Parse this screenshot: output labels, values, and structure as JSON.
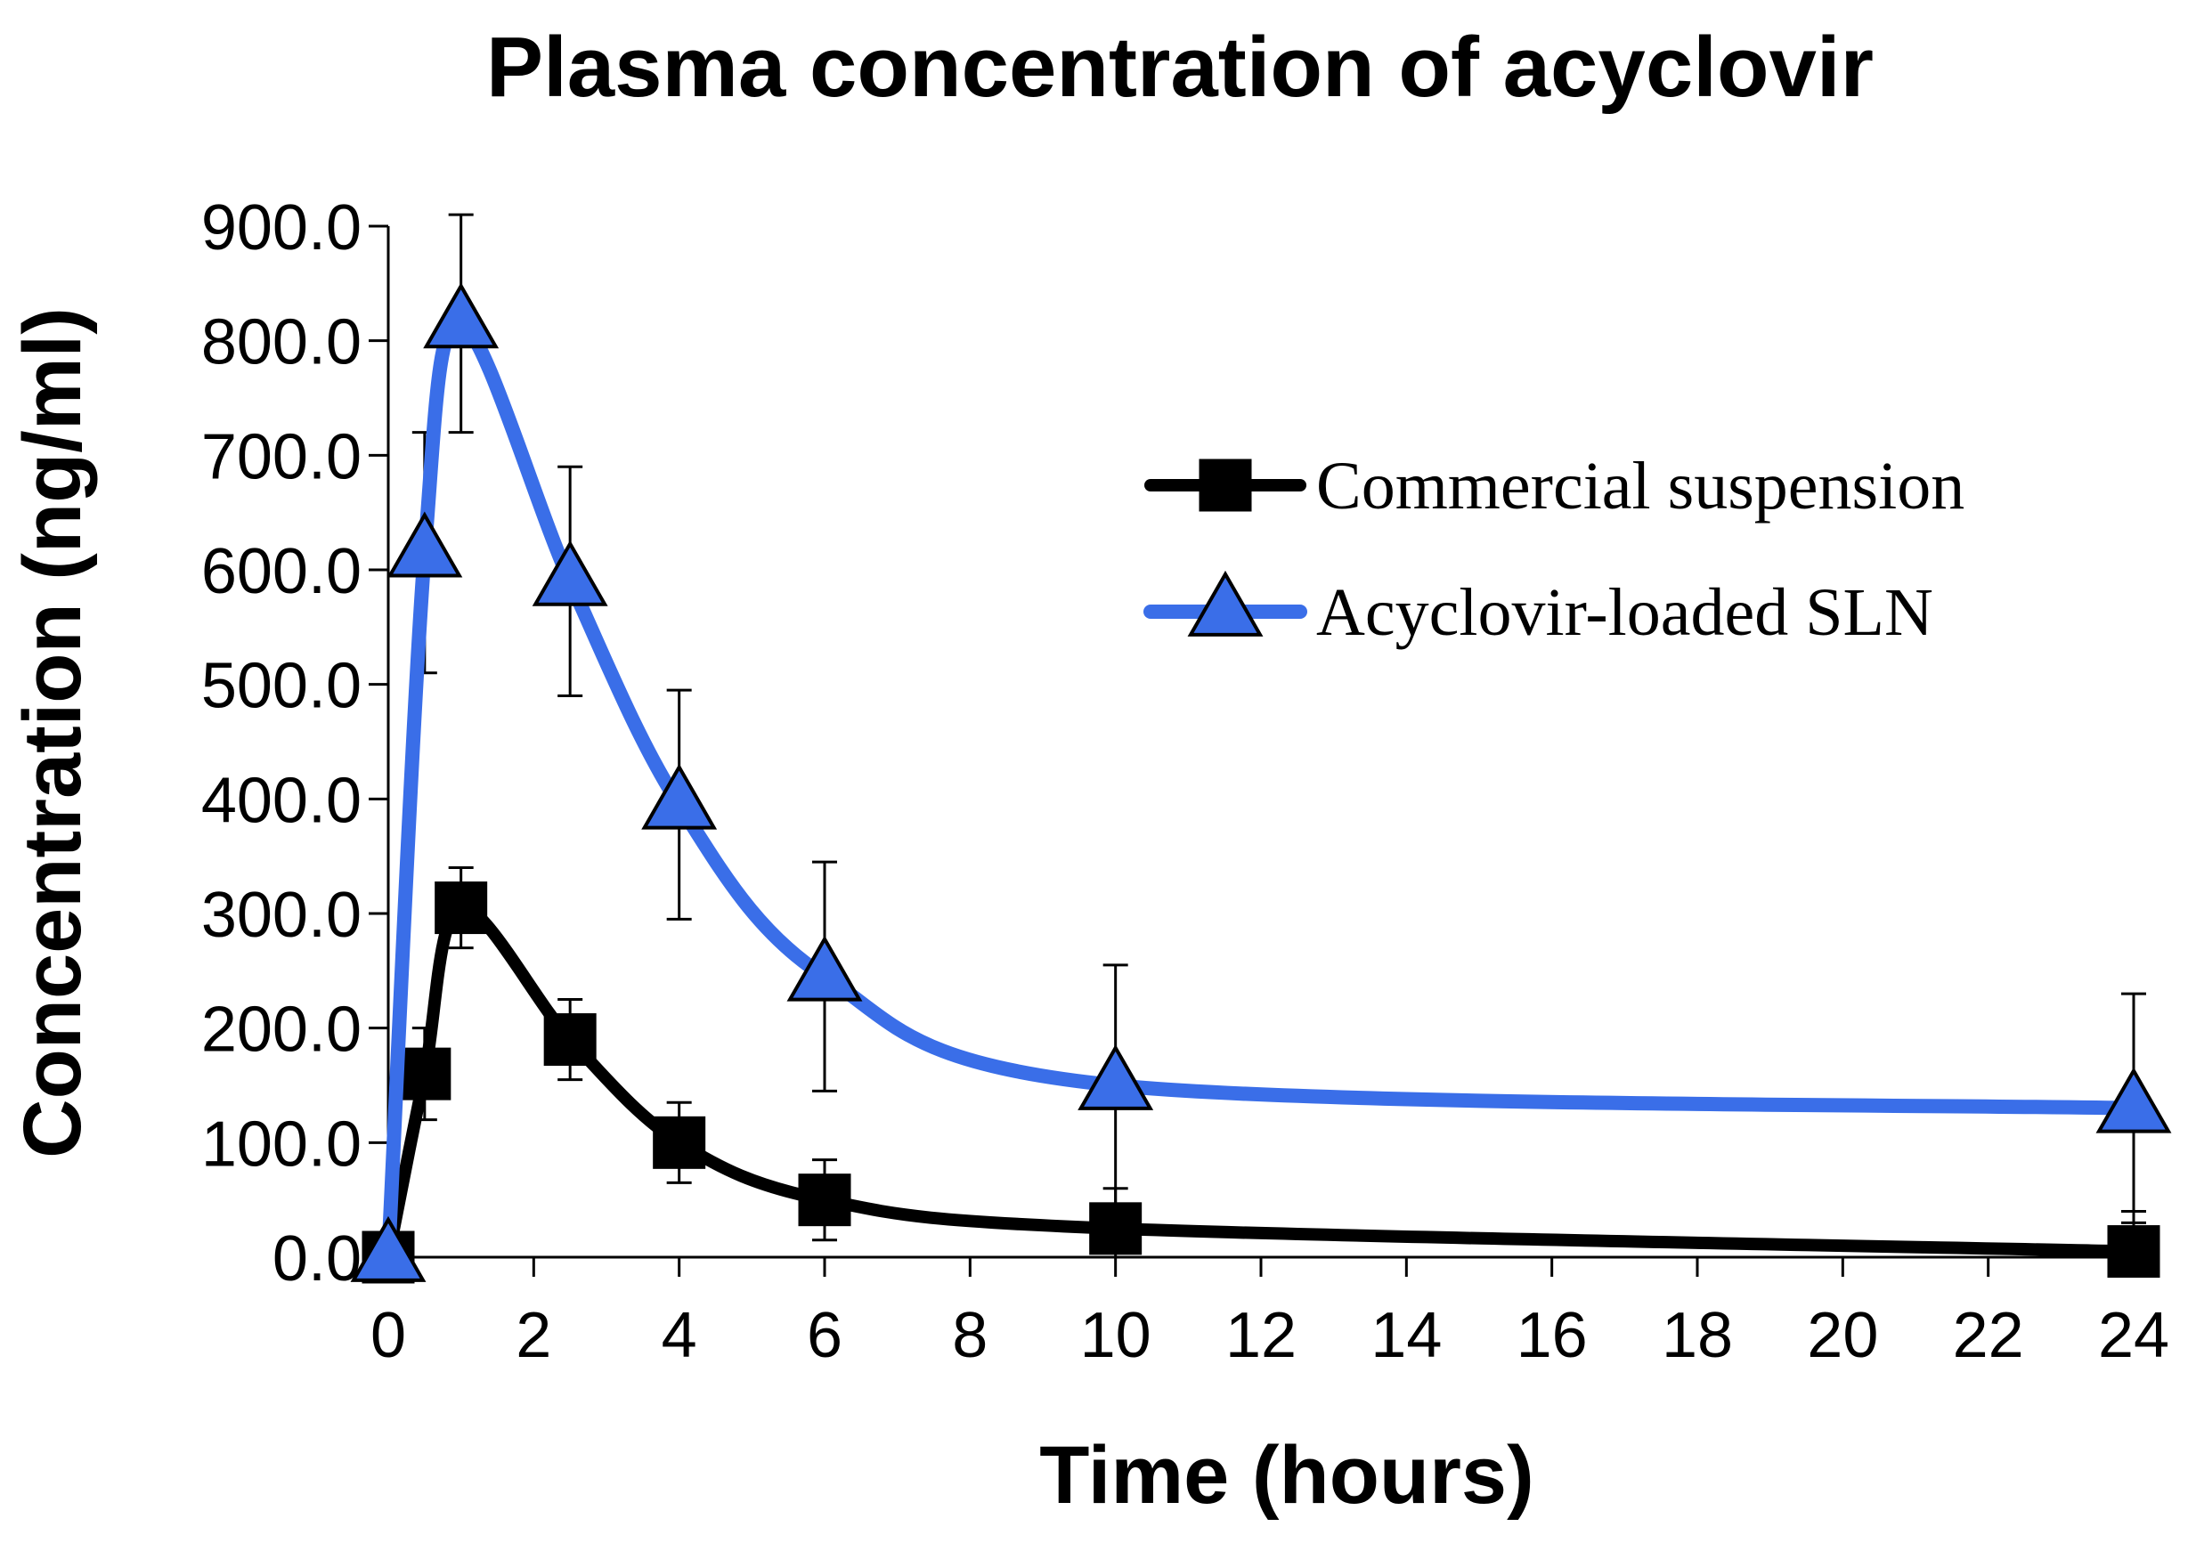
{
  "chart_data": {
    "type": "line",
    "title": "Plasma concentration of acyclovir",
    "xlabel": "Time (hours)",
    "ylabel": "Concentration (ng/ml)",
    "xlim": [
      0,
      24
    ],
    "ylim": [
      0,
      900
    ],
    "x_ticks": [
      "0",
      "2",
      "4",
      "6",
      "8",
      "10",
      "12",
      "14",
      "16",
      "18",
      "20",
      "22",
      "24"
    ],
    "y_ticks": [
      "0.0",
      "100.0",
      "200.0",
      "300.0",
      "400.0",
      "500.0",
      "600.0",
      "700.0",
      "800.0",
      "900.0"
    ],
    "grid": false,
    "legend_position": "top-right",
    "series": [
      {
        "name": "Commercial suspension",
        "color": "#000000",
        "marker": "square",
        "x": [
          0,
          0.5,
          1,
          2.5,
          4,
          6,
          10,
          24
        ],
        "y": [
          0,
          160,
          305,
          190,
          100,
          50,
          25,
          5
        ],
        "error": [
          0,
          40,
          35,
          35,
          35,
          35,
          35,
          35
        ]
      },
      {
        "name": "Acyclovir-loaded SLN",
        "color": "#3a6ee8",
        "marker": "triangle",
        "x": [
          0,
          0.5,
          1,
          2.5,
          4,
          6,
          10,
          24
        ],
        "y": [
          0,
          615,
          815,
          590,
          395,
          245,
          150,
          130
        ],
        "error": [
          0,
          105,
          95,
          100,
          100,
          100,
          105,
          100
        ]
      }
    ]
  }
}
